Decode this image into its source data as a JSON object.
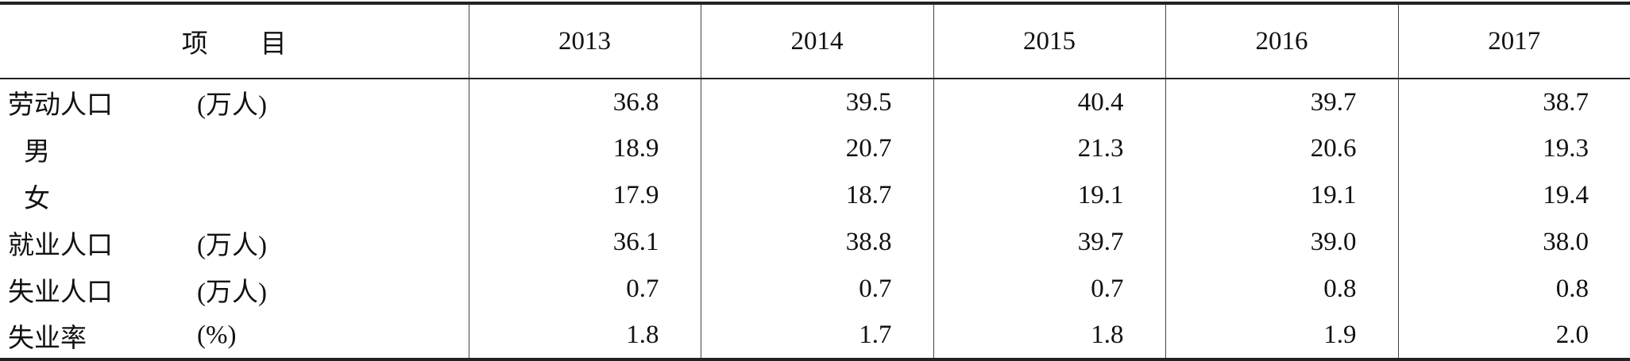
{
  "table": {
    "header": [
      "项　　目",
      "2013",
      "2014",
      "2015",
      "2016",
      "2017"
    ],
    "rows": [
      {
        "name": "劳动人口",
        "unit": "(万人)",
        "indent": false,
        "values": [
          "36.8",
          "39.5",
          "40.4",
          "39.7",
          "38.7"
        ]
      },
      {
        "name": "男",
        "indent": true,
        "values": [
          "18.9",
          "20.7",
          "21.3",
          "20.6",
          "19.3"
        ]
      },
      {
        "name": "女",
        "indent": true,
        "values": [
          "17.9",
          "18.7",
          "19.1",
          "19.1",
          "19.4"
        ]
      },
      {
        "name": "就业人口",
        "unit": "(万人)",
        "indent": false,
        "values": [
          "36.1",
          "38.8",
          "39.7",
          "39.0",
          "38.0"
        ]
      },
      {
        "name": "失业人口",
        "unit": "(万人)",
        "indent": false,
        "values": [
          "0.7",
          "0.7",
          "0.7",
          "0.8",
          "0.8"
        ]
      },
      {
        "name": "失业率",
        "unit": "(%)",
        "indent": false,
        "values": [
          "1.8",
          "1.7",
          "1.8",
          "1.9",
          "2.0"
        ]
      }
    ]
  }
}
